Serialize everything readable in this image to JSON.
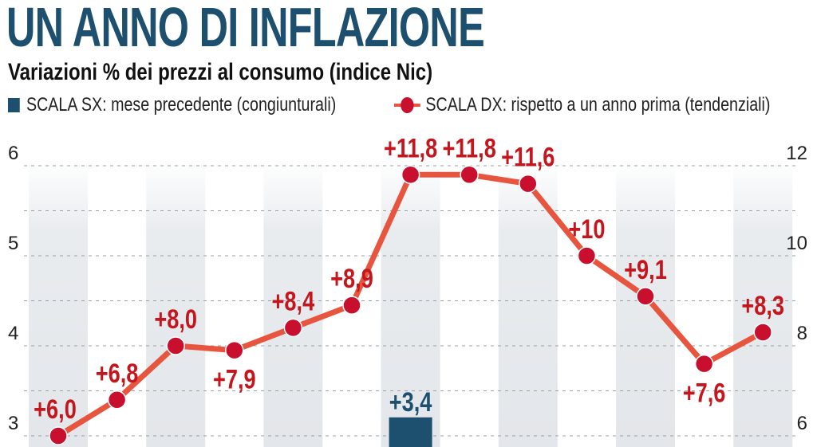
{
  "title": "UN ANNO DI INFLAZIONE",
  "subtitle": "Variazioni % dei prezzi al consumo (indice Nic)",
  "legend": {
    "bar": "SCALA SX: mese precedente (congiunturali)",
    "line": "SCALA DX: rispetto a un anno prima (tendenziali)"
  },
  "colors": {
    "bar": "#1d4f6e",
    "line": "#e8553e",
    "marker": "#c8102e",
    "label": "#c4161c",
    "stripe": "#e9ecef"
  },
  "chart_data": {
    "type": "bar+line",
    "left_axis": {
      "label": "SCALA SX",
      "ticks": [
        3,
        4,
        5,
        6
      ],
      "tick_labels": [
        "3",
        "4",
        "5",
        "6"
      ],
      "range": [
        3,
        6
      ]
    },
    "right_axis": {
      "label": "SCALA DX",
      "ticks": [
        6,
        8,
        10,
        12
      ],
      "tick_labels": [
        "6",
        "8",
        "10",
        "12"
      ],
      "range": [
        6,
        12
      ]
    },
    "grid": true,
    "legend_placement": "top",
    "series": [
      {
        "name": "SCALA DX: rispetto a un anno prima (tendenziali)",
        "type": "line",
        "axis": "right",
        "values": [
          6.0,
          6.8,
          8.0,
          7.9,
          8.4,
          8.9,
          11.8,
          11.8,
          11.6,
          10.0,
          9.1,
          7.6,
          8.3
        ],
        "labels": [
          "+6,0",
          "+6,8",
          "+8,0",
          "+7,9",
          "+8,4",
          "+8,9",
          "+11,8",
          "+11,8",
          "+11,6",
          "+10",
          "+9,1",
          "+7,6",
          "+8,3"
        ]
      },
      {
        "name": "SCALA SX: mese precedente (congiunturali)",
        "type": "bar",
        "axis": "left",
        "values": [
          null,
          null,
          null,
          null,
          null,
          null,
          3.4,
          null,
          null,
          null,
          null,
          null,
          null
        ],
        "labels": [
          "",
          "",
          "",
          "",
          "",
          "",
          "+3,4",
          "",
          "",
          "",
          "",
          "",
          ""
        ]
      }
    ]
  }
}
